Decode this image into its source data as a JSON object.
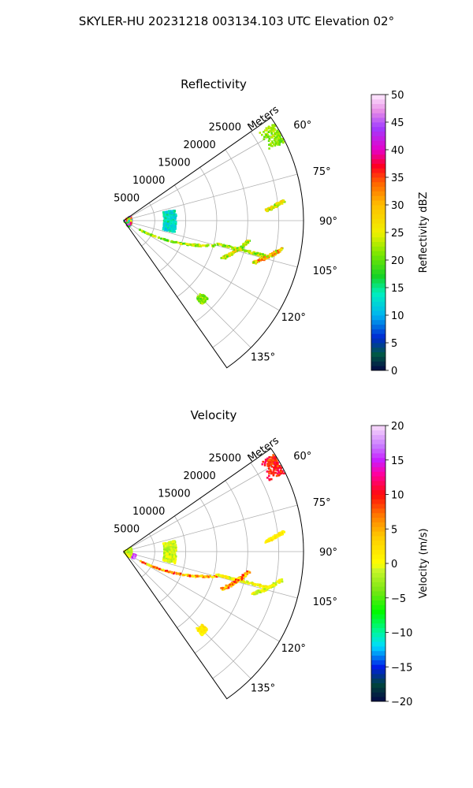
{
  "figure": {
    "suptitle": "SKYLER-HU  20231218  003134.103 UTC Elevation 02°"
  },
  "chart_data": [
    {
      "type": "polar-sector-heatmap",
      "title": "Reflectivity",
      "range_axis_label": "Meters",
      "range_ticks": [
        5000,
        10000,
        15000,
        20000,
        25000
      ],
      "range_tick_labels": [
        "5000",
        "10000",
        "15000",
        "20000",
        "25000"
      ],
      "range_max": 29000,
      "azimuth_min_deg": 55,
      "azimuth_max_deg": 145,
      "azimuth_ticks_deg": [
        60,
        75,
        90,
        105,
        120,
        135
      ],
      "azimuth_tick_labels": [
        "60°",
        "75°",
        "90°",
        "105°",
        "120°",
        "135°"
      ],
      "grid": true,
      "colorbar": {
        "label": "Reflectivity dBZ",
        "min": 0,
        "max": 50,
        "ticks": [
          0,
          5,
          10,
          15,
          20,
          25,
          30,
          35,
          40,
          45,
          50
        ],
        "tick_labels": [
          "0",
          "5",
          "10",
          "15",
          "20",
          "25",
          "30",
          "35",
          "40",
          "45",
          "50"
        ]
      },
      "echo_features": [
        {
          "feature": "near-radar clutter",
          "az": [
            56,
            144
          ],
          "r": [
            0,
            1300
          ],
          "value_range": [
            8,
            48
          ]
        },
        {
          "feature": "arc",
          "az": [
            78,
            103
          ],
          "r": [
            6500,
            8500
          ],
          "value_range": [
            10,
            16
          ]
        },
        {
          "feature": "line",
          "from": {
            "az": 120,
            "r": 3000
          },
          "to": {
            "az": 105,
            "r": 15500
          },
          "value_range": [
            17,
            26
          ]
        },
        {
          "feature": "line",
          "from": {
            "az": 104,
            "r": 15500
          },
          "to": {
            "az": 104,
            "r": 23500
          },
          "value_range": [
            18,
            28
          ]
        },
        {
          "feature": "line",
          "from": {
            "az": 111,
            "r": 17000
          },
          "to": {
            "az": 99,
            "r": 20500
          },
          "value_range": [
            18,
            30
          ]
        },
        {
          "feature": "line",
          "from": {
            "az": 86,
            "r": 23000
          },
          "to": {
            "az": 83,
            "r": 26000
          },
          "value_range": [
            20,
            30
          ]
        },
        {
          "feature": "line",
          "from": {
            "az": 108,
            "r": 22000
          },
          "to": {
            "az": 100,
            "r": 26000
          },
          "value_range": [
            20,
            36
          ]
        },
        {
          "feature": "blob",
          "az": [
            57,
            64
          ],
          "r": [
            26000,
            28800
          ],
          "value_range": [
            19,
            24
          ]
        },
        {
          "feature": "blob",
          "az": [
            133,
            137
          ],
          "r": [
            17000,
            18500
          ],
          "value_range": [
            18,
            24
          ]
        }
      ]
    },
    {
      "type": "polar-sector-heatmap",
      "title": "Velocity",
      "range_axis_label": "Meters",
      "range_ticks": [
        5000,
        10000,
        15000,
        20000,
        25000
      ],
      "range_tick_labels": [
        "5000",
        "10000",
        "15000",
        "20000",
        "25000"
      ],
      "range_max": 29000,
      "azimuth_min_deg": 55,
      "azimuth_max_deg": 145,
      "azimuth_ticks_deg": [
        60,
        75,
        90,
        105,
        120,
        135
      ],
      "azimuth_tick_labels": [
        "60°",
        "75°",
        "90°",
        "105°",
        "120°",
        "135°"
      ],
      "grid": true,
      "colorbar": {
        "label": "Velocity (m/s)",
        "min": -20,
        "max": 20,
        "ticks": [
          -20,
          -15,
          -10,
          -5,
          0,
          5,
          10,
          15,
          20
        ],
        "tick_labels": [
          "−20",
          "−15",
          "−10",
          "−5",
          "0",
          "5",
          "10",
          "15",
          "20"
        ]
      },
      "echo_features": [
        {
          "feature": "near-radar clutter",
          "az": [
            105,
            125
          ],
          "r": [
            0,
            2000
          ],
          "value_range": [
            14,
            18
          ]
        },
        {
          "feature": "near-radar clutter",
          "az": [
            60,
            140
          ],
          "r": [
            0,
            1300
          ],
          "value_range": [
            -4,
            2
          ]
        },
        {
          "feature": "arc",
          "az": [
            78,
            103
          ],
          "r": [
            6500,
            8500
          ],
          "value_range": [
            -3,
            1
          ]
        },
        {
          "feature": "line",
          "from": {
            "az": 120,
            "r": 3000
          },
          "to": {
            "az": 105,
            "r": 15500
          },
          "value_range": [
            -1,
            11
          ]
        },
        {
          "feature": "line",
          "from": {
            "az": 104,
            "r": 15500
          },
          "to": {
            "az": 104,
            "r": 23500
          },
          "value_range": [
            -2,
            3
          ]
        },
        {
          "feature": "line",
          "from": {
            "az": 111,
            "r": 17000
          },
          "to": {
            "az": 99,
            "r": 20500
          },
          "value_range": [
            0,
            11
          ]
        },
        {
          "feature": "line",
          "from": {
            "az": 86,
            "r": 23000
          },
          "to": {
            "az": 83,
            "r": 26000
          },
          "value_range": [
            0,
            3
          ]
        },
        {
          "feature": "line",
          "from": {
            "az": 108,
            "r": 22000
          },
          "to": {
            "az": 100,
            "r": 26000
          },
          "value_range": [
            -3,
            2
          ]
        },
        {
          "feature": "blob",
          "az": [
            57,
            64
          ],
          "r": [
            26000,
            28800
          ],
          "value_range": [
            7,
            12
          ]
        },
        {
          "feature": "blob",
          "az": [
            133,
            137
          ],
          "r": [
            17000,
            18500
          ],
          "value_range": [
            0,
            3
          ]
        }
      ]
    }
  ]
}
